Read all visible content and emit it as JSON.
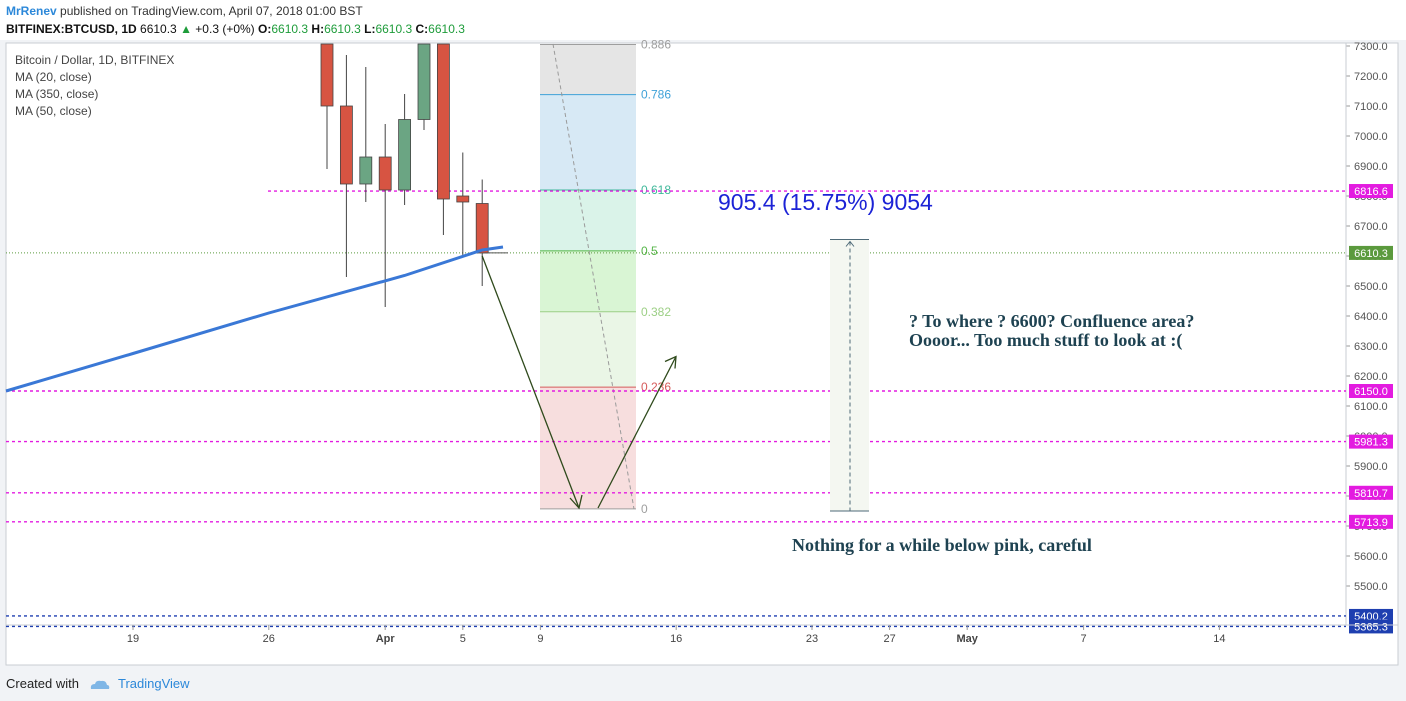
{
  "header": {
    "author": "MrRenev",
    "published": "published on TradingView.com, April 07, 2018 01:00 BST",
    "symbol": "BITFINEX:BTCUSD, 1D",
    "last": "6610.3",
    "change": "+0.3 (+0%)",
    "o_label": "O:",
    "o_val": "6610.3",
    "h_label": "H:",
    "h_val": "6610.3",
    "l_label": "L:",
    "l_val": "6610.3",
    "c_label": "C:",
    "c_val": "6610.3"
  },
  "legend": {
    "title": "Bitcoin / Dollar, 1D, BITFINEX",
    "ma1": "MA (20, close)",
    "ma2": "MA (350, close)",
    "ma3": "MA (50, close)"
  },
  "footer": {
    "created": "Created with",
    "brand": "TradingView"
  },
  "colors": {
    "up": "#6ba583",
    "down": "#d75442",
    "ma": "#3a78d6",
    "pink": "#e31be0",
    "blue": "#1e3fb0",
    "price_tag": "#5b9a3d"
  },
  "chart_data": {
    "type": "candlestick",
    "ylim": [
      5245,
      7318
    ],
    "yticks": [
      5500,
      5600,
      5700,
      5800,
      5900,
      6000,
      6100,
      6200,
      6300,
      6400,
      6500,
      6600,
      6700,
      6800,
      6900,
      7000,
      7100,
      7200,
      7300
    ],
    "xticks": [
      "19",
      "26",
      "Apr",
      "5",
      "9",
      "16",
      "23",
      "27",
      "May",
      "7",
      "14"
    ],
    "candles": [
      {
        "date": "Mar 29",
        "open": 7958,
        "high": 8200,
        "low": 6890,
        "close": 7100
      },
      {
        "date": "Mar 30",
        "open": 7100,
        "high": 7270,
        "low": 6530,
        "close": 6840
      },
      {
        "date": "Mar 31",
        "open": 6840,
        "high": 7230,
        "low": 6780,
        "close": 6930
      },
      {
        "date": "Apr 1",
        "open": 6930,
        "high": 7040,
        "low": 6430,
        "close": 6820
      },
      {
        "date": "Apr 2",
        "open": 6820,
        "high": 7140,
        "low": 6770,
        "close": 7055
      },
      {
        "date": "Apr 3",
        "open": 7055,
        "high": 7510,
        "low": 7020,
        "close": 7420
      },
      {
        "date": "Apr 4",
        "open": 7420,
        "high": 7430,
        "low": 6670,
        "close": 6790
      },
      {
        "date": "Apr 5",
        "open": 6800,
        "high": 6945,
        "low": 6600,
        "close": 6780
      },
      {
        "date": "Apr 6",
        "open": 6775,
        "high": 6855,
        "low": 6500,
        "close": 6610
      }
    ],
    "ma_line": {
      "name": "MA",
      "points": [
        [
          "Mar 12",
          6150
        ],
        [
          "Mar 19",
          6275
        ],
        [
          "Mar 26",
          6410
        ],
        [
          "Apr 2",
          6535
        ],
        [
          "Apr 6",
          6620
        ]
      ]
    },
    "last_price": 6610.3,
    "horizontal_levels": [
      {
        "value": 6816.6,
        "label": "6816.6",
        "style": "pink"
      },
      {
        "value": 6150.0,
        "label": "6150.0",
        "style": "pink"
      },
      {
        "value": 5981.3,
        "label": "5981.3",
        "style": "pink"
      },
      {
        "value": 5810.7,
        "label": "5810.7",
        "style": "pink"
      },
      {
        "value": 5713.9,
        "label": "5713.9",
        "style": "pink"
      },
      {
        "value": 5400.2,
        "label": "5400.2",
        "style": "blue"
      },
      {
        "value": 5365.3,
        "label": "5365.3",
        "style": "blue"
      }
    ],
    "fib_levels": [
      {
        "ratio": "0.886",
        "value": 7305
      },
      {
        "ratio": "0.786",
        "value": 7138
      },
      {
        "ratio": "0.618",
        "value": 6820
      },
      {
        "ratio": "0.5",
        "value": 6617
      },
      {
        "ratio": "0.382",
        "value": 6414
      },
      {
        "ratio": "0.236",
        "value": 6163
      },
      {
        "ratio": "0",
        "value": 5757
      }
    ],
    "measure": {
      "text": "905.4 (15.75%) 9054",
      "from": 5750,
      "to": 6655
    },
    "annotations": {
      "note1": "? To where ? 6600? Confluence area?",
      "note2": "Oooor... Too much stuff to look at :(",
      "note3": "Nothing for a while below pink, careful"
    }
  }
}
